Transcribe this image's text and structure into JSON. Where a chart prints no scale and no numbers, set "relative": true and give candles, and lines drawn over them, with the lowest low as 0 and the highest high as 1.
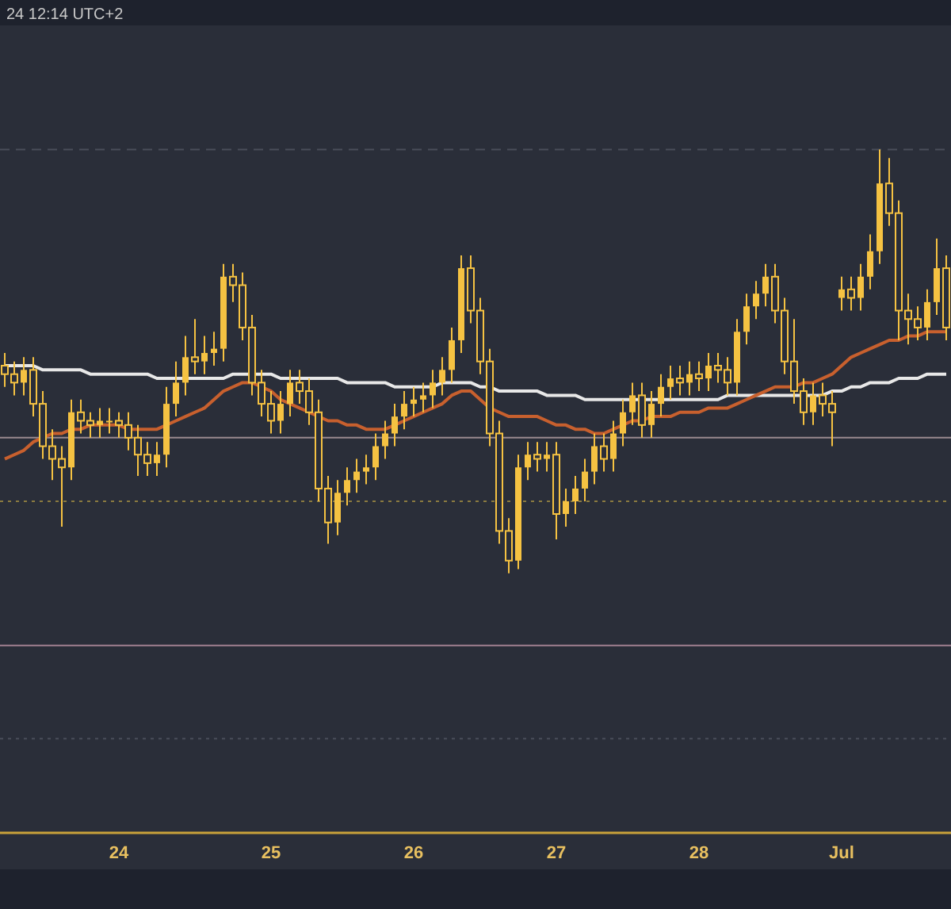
{
  "chart_data": {
    "type": "candlestick",
    "relative": true,
    "color": "#f5c242",
    "annotations": [
      "24 12:14 UTC+2"
    ],
    "categories": [
      null,
      null,
      null,
      null,
      null,
      null,
      null,
      null,
      null,
      null,
      null,
      null,
      "24",
      null,
      null,
      null,
      null,
      null,
      null,
      null,
      null,
      null,
      null,
      null,
      null,
      null,
      null,
      null,
      "25",
      null,
      null,
      null,
      null,
      null,
      null,
      null,
      null,
      null,
      null,
      null,
      null,
      null,
      null,
      "26",
      null,
      null,
      null,
      null,
      null,
      null,
      null,
      null,
      null,
      null,
      null,
      null,
      null,
      null,
      "27",
      null,
      null,
      null,
      null,
      null,
      null,
      null,
      null,
      null,
      null,
      null,
      null,
      null,
      null,
      "28",
      null,
      null,
      null,
      null,
      null,
      null,
      null,
      null,
      null,
      null,
      null,
      null,
      null,
      null,
      "Jul",
      null,
      null,
      null,
      null,
      null,
      null,
      null,
      null,
      null,
      null,
      null
    ],
    "ohlc": [
      [
        0.49,
        0.52,
        0.44,
        0.47
      ],
      [
        0.47,
        0.5,
        0.42,
        0.45
      ],
      [
        0.45,
        0.51,
        0.42,
        0.48
      ],
      [
        0.48,
        0.51,
        0.37,
        0.4
      ],
      [
        0.4,
        0.43,
        0.27,
        0.3
      ],
      [
        0.3,
        0.34,
        0.22,
        0.27
      ],
      [
        0.27,
        0.3,
        0.11,
        0.25
      ],
      [
        0.25,
        0.41,
        0.22,
        0.38
      ],
      [
        0.38,
        0.41,
        0.33,
        0.36
      ],
      [
        0.36,
        0.38,
        0.32,
        0.35
      ],
      [
        0.35,
        0.39,
        0.32,
        0.36
      ],
      [
        0.36,
        0.39,
        0.33,
        0.36
      ],
      [
        0.36,
        0.38,
        0.32,
        0.35
      ],
      [
        0.35,
        0.38,
        0.29,
        0.32
      ],
      [
        0.32,
        0.35,
        0.23,
        0.28
      ],
      [
        0.28,
        0.31,
        0.23,
        0.26
      ],
      [
        0.26,
        0.31,
        0.23,
        0.28
      ],
      [
        0.28,
        0.44,
        0.25,
        0.4
      ],
      [
        0.4,
        0.5,
        0.37,
        0.45
      ],
      [
        0.45,
        0.56,
        0.42,
        0.51
      ],
      [
        0.51,
        0.6,
        0.47,
        0.5
      ],
      [
        0.5,
        0.56,
        0.47,
        0.52
      ],
      [
        0.52,
        0.57,
        0.49,
        0.53
      ],
      [
        0.53,
        0.73,
        0.5,
        0.7
      ],
      [
        0.7,
        0.73,
        0.64,
        0.68
      ],
      [
        0.68,
        0.71,
        0.55,
        0.58
      ],
      [
        0.58,
        0.61,
        0.42,
        0.45
      ],
      [
        0.45,
        0.48,
        0.37,
        0.4
      ],
      [
        0.4,
        0.43,
        0.33,
        0.36
      ],
      [
        0.36,
        0.43,
        0.33,
        0.4
      ],
      [
        0.4,
        0.48,
        0.37,
        0.45
      ],
      [
        0.45,
        0.48,
        0.4,
        0.43
      ],
      [
        0.43,
        0.46,
        0.35,
        0.38
      ],
      [
        0.38,
        0.41,
        0.17,
        0.2
      ],
      [
        0.2,
        0.23,
        0.07,
        0.12
      ],
      [
        0.12,
        0.22,
        0.09,
        0.19
      ],
      [
        0.19,
        0.25,
        0.16,
        0.22
      ],
      [
        0.22,
        0.27,
        0.19,
        0.24
      ],
      [
        0.24,
        0.28,
        0.21,
        0.25
      ],
      [
        0.25,
        0.33,
        0.22,
        0.3
      ],
      [
        0.3,
        0.36,
        0.27,
        0.33
      ],
      [
        0.33,
        0.4,
        0.3,
        0.37
      ],
      [
        0.37,
        0.43,
        0.34,
        0.4
      ],
      [
        0.4,
        0.44,
        0.37,
        0.41
      ],
      [
        0.41,
        0.45,
        0.38,
        0.42
      ],
      [
        0.42,
        0.48,
        0.39,
        0.45
      ],
      [
        0.45,
        0.51,
        0.42,
        0.48
      ],
      [
        0.48,
        0.58,
        0.45,
        0.55
      ],
      [
        0.55,
        0.75,
        0.52,
        0.72
      ],
      [
        0.72,
        0.75,
        0.59,
        0.62
      ],
      [
        0.62,
        0.65,
        0.47,
        0.5
      ],
      [
        0.5,
        0.53,
        0.3,
        0.33
      ],
      [
        0.33,
        0.36,
        0.07,
        0.1
      ],
      [
        0.1,
        0.13,
        0.0,
        0.03
      ],
      [
        0.03,
        0.28,
        0.01,
        0.25
      ],
      [
        0.25,
        0.31,
        0.22,
        0.28
      ],
      [
        0.28,
        0.31,
        0.24,
        0.27
      ],
      [
        0.27,
        0.31,
        0.24,
        0.28
      ],
      [
        0.28,
        0.31,
        0.08,
        0.14
      ],
      [
        0.14,
        0.2,
        0.11,
        0.17
      ],
      [
        0.17,
        0.23,
        0.14,
        0.2
      ],
      [
        0.2,
        0.27,
        0.17,
        0.24
      ],
      [
        0.24,
        0.33,
        0.21,
        0.3
      ],
      [
        0.3,
        0.33,
        0.24,
        0.27
      ],
      [
        0.27,
        0.36,
        0.24,
        0.33
      ],
      [
        0.33,
        0.41,
        0.3,
        0.38
      ],
      [
        0.38,
        0.45,
        0.35,
        0.42
      ],
      [
        0.42,
        0.45,
        0.32,
        0.35
      ],
      [
        0.35,
        0.43,
        0.32,
        0.4
      ],
      [
        0.4,
        0.47,
        0.37,
        0.44
      ],
      [
        0.44,
        0.49,
        0.41,
        0.46
      ],
      [
        0.46,
        0.49,
        0.42,
        0.45
      ],
      [
        0.45,
        0.5,
        0.42,
        0.47
      ],
      [
        0.47,
        0.5,
        0.43,
        0.46
      ],
      [
        0.46,
        0.52,
        0.43,
        0.49
      ],
      [
        0.49,
        0.52,
        0.45,
        0.48
      ],
      [
        0.48,
        0.51,
        0.42,
        0.45
      ],
      [
        0.45,
        0.6,
        0.42,
        0.57
      ],
      [
        0.57,
        0.66,
        0.54,
        0.63
      ],
      [
        0.63,
        0.69,
        0.6,
        0.66
      ],
      [
        0.66,
        0.73,
        0.63,
        0.7
      ],
      [
        0.7,
        0.73,
        0.59,
        0.62
      ],
      [
        0.62,
        0.65,
        0.47,
        0.5
      ],
      [
        0.5,
        0.6,
        0.4,
        0.43
      ],
      [
        0.43,
        0.46,
        0.35,
        0.38
      ],
      [
        0.38,
        0.45,
        0.35,
        0.42
      ],
      [
        0.42,
        0.45,
        0.37,
        0.4
      ],
      [
        0.4,
        0.43,
        0.3,
        0.38
      ],
      [
        0.65,
        0.7,
        0.62,
        0.67
      ],
      [
        0.67,
        0.7,
        0.62,
        0.65
      ],
      [
        0.65,
        0.73,
        0.62,
        0.7
      ],
      [
        0.7,
        0.8,
        0.67,
        0.76
      ],
      [
        0.76,
        1.0,
        0.73,
        0.92
      ],
      [
        0.92,
        0.98,
        0.82,
        0.85
      ],
      [
        0.85,
        0.88,
        0.55,
        0.62
      ],
      [
        0.62,
        0.66,
        0.54,
        0.6
      ],
      [
        0.6,
        0.63,
        0.55,
        0.58
      ],
      [
        0.58,
        0.67,
        0.55,
        0.64
      ],
      [
        0.64,
        0.79,
        0.61,
        0.72
      ],
      [
        0.72,
        0.75,
        0.55,
        0.58
      ]
    ],
    "series": [
      {
        "type": "line",
        "color": "#e8e8e8",
        "values": [
          0.49,
          0.49,
          0.49,
          0.49,
          0.48,
          0.48,
          0.48,
          0.48,
          0.48,
          0.47,
          0.47,
          0.47,
          0.47,
          0.47,
          0.47,
          0.47,
          0.46,
          0.46,
          0.46,
          0.46,
          0.46,
          0.46,
          0.46,
          0.46,
          0.47,
          0.47,
          0.47,
          0.47,
          0.47,
          0.46,
          0.46,
          0.46,
          0.46,
          0.46,
          0.46,
          0.46,
          0.45,
          0.45,
          0.45,
          0.45,
          0.45,
          0.44,
          0.44,
          0.44,
          0.44,
          0.44,
          0.45,
          0.45,
          0.45,
          0.45,
          0.44,
          0.44,
          0.43,
          0.43,
          0.43,
          0.43,
          0.43,
          0.42,
          0.42,
          0.42,
          0.42,
          0.41,
          0.41,
          0.41,
          0.41,
          0.41,
          0.41,
          0.41,
          0.41,
          0.41,
          0.41,
          0.41,
          0.41,
          0.41,
          0.41,
          0.41,
          0.42,
          0.42,
          0.42,
          0.42,
          0.42,
          0.42,
          0.42,
          0.42,
          0.42,
          0.42,
          0.42,
          0.43,
          0.43,
          0.44,
          0.44,
          0.45,
          0.45,
          0.45,
          0.46,
          0.46,
          0.46,
          0.47,
          0.47,
          0.47
        ]
      },
      {
        "type": "line",
        "color": "#c8602e",
        "values": [
          0.27,
          0.28,
          0.29,
          0.31,
          0.32,
          0.33,
          0.33,
          0.34,
          0.34,
          0.35,
          0.35,
          0.35,
          0.35,
          0.34,
          0.34,
          0.34,
          0.34,
          0.35,
          0.36,
          0.37,
          0.38,
          0.39,
          0.41,
          0.43,
          0.44,
          0.45,
          0.45,
          0.44,
          0.43,
          0.41,
          0.4,
          0.39,
          0.38,
          0.37,
          0.36,
          0.36,
          0.35,
          0.35,
          0.34,
          0.34,
          0.34,
          0.35,
          0.36,
          0.37,
          0.38,
          0.39,
          0.4,
          0.42,
          0.43,
          0.43,
          0.41,
          0.39,
          0.38,
          0.37,
          0.37,
          0.37,
          0.37,
          0.36,
          0.35,
          0.35,
          0.34,
          0.34,
          0.33,
          0.33,
          0.34,
          0.35,
          0.36,
          0.36,
          0.37,
          0.37,
          0.37,
          0.38,
          0.38,
          0.38,
          0.39,
          0.39,
          0.39,
          0.4,
          0.41,
          0.42,
          0.43,
          0.44,
          0.44,
          0.44,
          0.45,
          0.45,
          0.46,
          0.47,
          0.49,
          0.51,
          0.52,
          0.53,
          0.54,
          0.55,
          0.55,
          0.56,
          0.56,
          0.57,
          0.57,
          0.57
        ]
      }
    ],
    "ref_lines": [
      {
        "axis": "y",
        "value": 1.0,
        "color": "#4a4e5a",
        "line_style": "dashed"
      },
      {
        "axis": "y",
        "value": 0.32,
        "color": "#9a8a90",
        "line_style": "solid"
      },
      {
        "axis": "y",
        "value": 0.17,
        "color": "#8a7a40",
        "line_style": "dotted"
      },
      {
        "axis": "y",
        "value": -0.17,
        "color": "#a08090",
        "line_style": "solid"
      },
      {
        "axis": "y",
        "value": -0.39,
        "color": "#4a4e5a",
        "line_style": "dotted"
      }
    ]
  }
}
